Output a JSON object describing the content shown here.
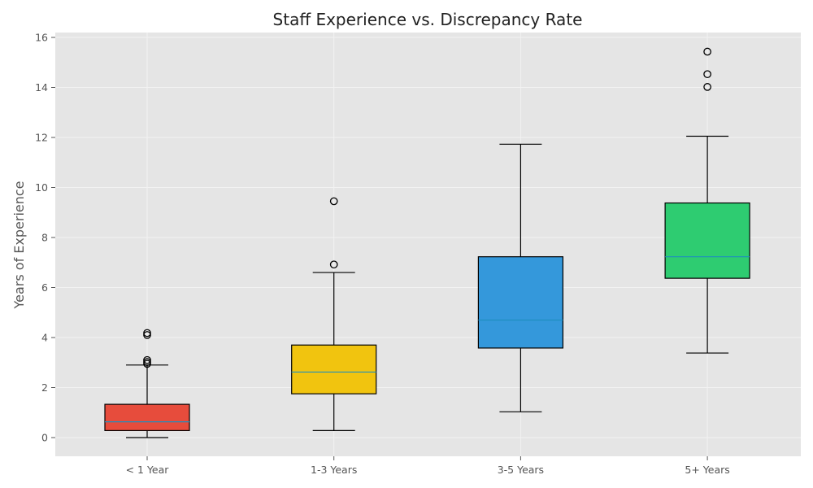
{
  "chart_data": {
    "type": "box",
    "title": "Staff Experience vs. Discrepancy Rate",
    "xlabel": "",
    "ylabel": "Years of Experience",
    "categories": [
      "< 1 Year",
      "1-3 Years",
      "3-5 Years",
      "5+ Years"
    ],
    "yticks": [
      "0",
      "2",
      "4",
      "6",
      "8",
      "10",
      "12",
      "14",
      "16"
    ],
    "ylim": [
      -0.75,
      16.2
    ],
    "grid": true,
    "boxes": [
      {
        "category": "< 1 Year",
        "whisker_low": 0.0,
        "q1": 0.28,
        "median": 0.63,
        "q3": 1.33,
        "whisker_high": 2.9,
        "outliers": [
          2.95,
          3.02,
          3.1,
          4.1,
          4.18
        ],
        "color": "#e74c3c"
      },
      {
        "category": "1-3 Years",
        "whisker_low": 0.28,
        "q1": 1.75,
        "median": 2.62,
        "q3": 3.7,
        "whisker_high": 6.6,
        "outliers": [
          6.92,
          9.45
        ],
        "color": "#f1c40f"
      },
      {
        "category": "3-5 Years",
        "whisker_low": 1.03,
        "q1": 3.58,
        "median": 4.7,
        "q3": 7.23,
        "whisker_high": 11.73,
        "outliers": [],
        "color": "#3498db"
      },
      {
        "category": "5+ Years",
        "whisker_low": 3.38,
        "q1": 6.37,
        "median": 7.23,
        "q3": 9.38,
        "whisker_high": 12.05,
        "outliers": [
          14.02,
          14.53,
          15.43
        ],
        "color": "#2ecc71"
      }
    ],
    "median_color": "#1f8fbf"
  }
}
